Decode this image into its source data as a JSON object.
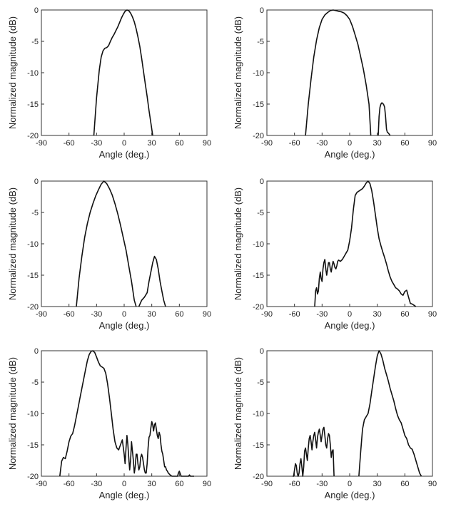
{
  "figure": {
    "background": "#ffffff",
    "line_color": "#111111"
  },
  "chart_data": [
    {
      "type": "line",
      "xlabel": "Angle (deg.)",
      "ylabel": "Normalized magnitude (dB)",
      "xlim": [
        -90,
        90
      ],
      "ylim": [
        -20,
        0
      ],
      "xticks": [
        "-90",
        "-60",
        "-30",
        "0",
        "30",
        "60",
        "90"
      ],
      "yticks": [
        "0",
        "-5",
        "-10",
        "-15",
        "-20"
      ],
      "grid": false,
      "series": [
        {
          "x": [
            -33,
            -30,
            -27,
            -25,
            -23,
            -21,
            -19,
            -17,
            -15,
            -13,
            -11,
            -9,
            -7,
            -5,
            -3,
            -1,
            1,
            3,
            5,
            7,
            9,
            11,
            13,
            15,
            17,
            19,
            21,
            23,
            25,
            27,
            29,
            31
          ],
          "y": [
            -20,
            -14,
            -9.5,
            -7.5,
            -6.5,
            -6.1,
            -6,
            -5.7,
            -5,
            -4.4,
            -3.9,
            -3.3,
            -2.7,
            -2,
            -1.3,
            -0.7,
            -0.2,
            0,
            -0.1,
            -0.5,
            -1.1,
            -1.9,
            -3,
            -4.3,
            -5.8,
            -7.7,
            -9.8,
            -11.8,
            -13.8,
            -16,
            -18,
            -20
          ]
        }
      ]
    },
    {
      "type": "line",
      "xlabel": "Angle (deg.)",
      "ylabel": "Normalized magnitude (dB)",
      "xlim": [
        -90,
        90
      ],
      "ylim": [
        -20,
        0
      ],
      "xticks": [
        "-90",
        "-60",
        "-30",
        "0",
        "30",
        "60",
        "90"
      ],
      "yticks": [
        "0",
        "-5",
        "-10",
        "-15",
        "-20"
      ],
      "grid": false,
      "series": [
        {
          "x": [
            -48,
            -45,
            -42,
            -39,
            -36,
            -33,
            -30,
            -27,
            -24,
            -21,
            -18,
            -15,
            -12,
            -9,
            -6,
            -3,
            0,
            3,
            6,
            9,
            12,
            15,
            18,
            21,
            23
          ],
          "y": [
            -20,
            -15,
            -11,
            -7.5,
            -4.8,
            -2.8,
            -1.5,
            -0.8,
            -0.4,
            -0.1,
            0,
            -0.1,
            -0.2,
            -0.3,
            -0.5,
            -0.9,
            -1.5,
            -2.6,
            -4,
            -5.5,
            -7.5,
            -9.5,
            -12,
            -15,
            -20
          ]
        },
        {
          "x": [
            31,
            32,
            33,
            34,
            35,
            36,
            37,
            38,
            39,
            40,
            41,
            42,
            43,
            44
          ],
          "y": [
            -20,
            -17,
            -15.5,
            -15,
            -14.8,
            -14.9,
            -15.1,
            -15.5,
            -17,
            -19,
            -19.5,
            -19.6,
            -19.8,
            -20
          ]
        }
      ]
    },
    {
      "type": "line",
      "xlabel": "Angle (deg.)",
      "ylabel": "Normalized magnitude (dB)",
      "xlim": [
        -90,
        90
      ],
      "ylim": [
        -20,
        0
      ],
      "xticks": [
        "-90",
        "-60",
        "-30",
        "0",
        "30",
        "60",
        "90"
      ],
      "yticks": [
        "0",
        "-5",
        "-10",
        "-15",
        "-20"
      ],
      "grid": false,
      "series": [
        {
          "x": [
            -52,
            -49,
            -46,
            -43,
            -40,
            -37,
            -34,
            -31,
            -28,
            -25,
            -22,
            -19,
            -16,
            -13,
            -10,
            -7,
            -4,
            -1,
            2,
            5,
            8,
            11,
            13
          ],
          "y": [
            -20,
            -15.5,
            -12,
            -9,
            -6.8,
            -5,
            -3.6,
            -2.4,
            -1.4,
            -0.5,
            0,
            -0.4,
            -1.2,
            -2.2,
            -3.6,
            -5.2,
            -7,
            -9,
            -11,
            -13.5,
            -16,
            -19,
            -20
          ]
        },
        {
          "x": [
            16,
            19,
            22,
            25,
            27,
            29,
            31,
            33,
            35,
            37,
            39,
            41,
            43,
            45
          ],
          "y": [
            -20,
            -19,
            -18.5,
            -17.8,
            -16,
            -14.5,
            -13,
            -12,
            -12.5,
            -14,
            -16,
            -17.5,
            -19,
            -20
          ]
        }
      ]
    },
    {
      "type": "line",
      "xlabel": "Angle (deg.)",
      "ylabel": "Normalized magnitude (dB)",
      "xlim": [
        -90,
        90
      ],
      "ylim": [
        -20,
        0
      ],
      "xticks": [
        "-90",
        "-60",
        "-30",
        "0",
        "30",
        "60",
        "90"
      ],
      "yticks": [
        "0",
        "-5",
        "-10",
        "-15",
        "-20"
      ],
      "grid": false,
      "series": [
        {
          "x": [
            -38,
            -37,
            -36,
            -35,
            -34,
            -33,
            -32,
            -31,
            -30,
            -29,
            -28,
            -27,
            -26,
            -25,
            -24,
            -23,
            -22,
            -21,
            -20,
            -19,
            -18,
            -17,
            -16,
            -15,
            -14,
            -13,
            -12,
            -11,
            -10,
            -8,
            -6,
            -4,
            -2,
            0,
            2,
            4,
            6,
            8,
            10,
            12,
            14,
            16,
            18,
            20,
            22,
            24,
            26,
            28,
            30,
            32,
            34,
            36,
            38,
            40,
            42,
            44,
            46,
            48,
            50,
            52,
            54,
            56,
            58,
            60,
            62,
            64,
            66,
            68,
            70,
            72
          ],
          "y": [
            -20,
            -17.5,
            -17,
            -18,
            -17.5,
            -15.5,
            -14.5,
            -15.5,
            -16,
            -14,
            -13,
            -12.5,
            -14,
            -15,
            -14,
            -13,
            -13,
            -14,
            -14.5,
            -13.5,
            -12.8,
            -13.2,
            -13.8,
            -14,
            -13.5,
            -12.8,
            -12.6,
            -12.7,
            -12.8,
            -12.5,
            -12,
            -11.5,
            -11,
            -9.5,
            -7.5,
            -4.5,
            -2.3,
            -1.8,
            -1.6,
            -1.4,
            -1.2,
            -0.8,
            -0.3,
            0,
            -0.4,
            -1.5,
            -3.3,
            -5.4,
            -7.5,
            -9.2,
            -10.3,
            -11.3,
            -12.2,
            -13.2,
            -14.3,
            -15.3,
            -16,
            -16.5,
            -17,
            -17.2,
            -17.5,
            -18,
            -18.2,
            -17.6,
            -17.4,
            -18.5,
            -19.5,
            -19.6,
            -19.8,
            -20
          ]
        }
      ]
    },
    {
      "type": "line",
      "xlabel": "Angle (deg.)",
      "ylabel": "Normalized magnitude (dB)",
      "xlim": [
        -90,
        90
      ],
      "ylim": [
        -20,
        0
      ],
      "xticks": [
        "-90",
        "-60",
        "-30",
        "0",
        "30",
        "60",
        "90"
      ],
      "yticks": [
        "0",
        "-5",
        "-10",
        "-15",
        "-20"
      ],
      "grid": false,
      "series": [
        {
          "x": [
            -70,
            -68,
            -66,
            -64,
            -62,
            -60,
            -58,
            -56,
            -54,
            -52,
            -50,
            -48,
            -46,
            -44,
            -42,
            -40,
            -38,
            -36,
            -34,
            -32,
            -30,
            -28,
            -26,
            -24,
            -22,
            -20,
            -18,
            -16,
            -14,
            -12,
            -10,
            -8,
            -6,
            -4,
            -2,
            0,
            1,
            2,
            3,
            4,
            5,
            6,
            7,
            8,
            9,
            10,
            11,
            12,
            13,
            14,
            15,
            16,
            17,
            18,
            19,
            20,
            21,
            22,
            23,
            24,
            25,
            26,
            27,
            28,
            29,
            30,
            31,
            32,
            33,
            34,
            35,
            36,
            37,
            38,
            39,
            40,
            41,
            42,
            43,
            44,
            45,
            46,
            47,
            48,
            50,
            52,
            54,
            56,
            58,
            59,
            60,
            61,
            62,
            64,
            66,
            68,
            70,
            71,
            72,
            74,
            76
          ],
          "y": [
            -20,
            -17.6,
            -17,
            -17.2,
            -16,
            -14.5,
            -13.6,
            -13.2,
            -12,
            -10.5,
            -9,
            -7.5,
            -6,
            -4.5,
            -3,
            -1.6,
            -0.6,
            -0.1,
            0,
            -0.3,
            -1,
            -1.8,
            -2.4,
            -2.6,
            -2.8,
            -3.6,
            -5.3,
            -7.5,
            -10,
            -12.5,
            -14.5,
            -15.5,
            -15.8,
            -15,
            -14.2,
            -16.5,
            -18,
            -15.5,
            -13.5,
            -15,
            -17,
            -19,
            -17.5,
            -14.5,
            -16,
            -17.5,
            -19.5,
            -18.5,
            -16.5,
            -16.5,
            -18,
            -19,
            -18.5,
            -17,
            -16.5,
            -17,
            -18,
            -19,
            -19.5,
            -19.5,
            -18,
            -15.5,
            -13.8,
            -13.5,
            -12.3,
            -11.3,
            -11.8,
            -12.8,
            -11.8,
            -11.5,
            -12.5,
            -13.5,
            -14,
            -13,
            -13.5,
            -15,
            -16,
            -16.5,
            -17.5,
            -18.5,
            -18.5,
            -19,
            -19.2,
            -19.5,
            -19.8,
            -20,
            -20,
            -20,
            -20,
            -19.5,
            -19.2,
            -19.6,
            -20,
            -20,
            -20,
            -20,
            -20,
            -19.8,
            -20,
            -20,
            -20
          ]
        }
      ]
    },
    {
      "type": "line",
      "xlabel": "Angle (deg.)",
      "ylabel": "Normalized magnitude (dB)",
      "xlim": [
        -90,
        90
      ],
      "ylim": [
        -20,
        0
      ],
      "xticks": [
        "-90",
        "-60",
        "-30",
        "0",
        "30",
        "60",
        "90"
      ],
      "yticks": [
        "0",
        "-5",
        "-10",
        "-15",
        "-20"
      ],
      "grid": false,
      "series": [
        {
          "x": [
            -62,
            -61,
            -60,
            -59,
            -58,
            -57,
            -56,
            -55,
            -54,
            -53,
            -52,
            -51,
            -50,
            -49,
            -48,
            -47,
            -46,
            -45,
            -44,
            -43,
            -42,
            -41,
            -40,
            -39,
            -38,
            -37,
            -36,
            -35,
            -34,
            -33,
            -32,
            -31,
            -30,
            -29,
            -28,
            -27,
            -26,
            -25,
            -24,
            -23,
            -22,
            -21,
            -20,
            -19,
            -18,
            -17
          ],
          "y": [
            -20,
            -20,
            -19,
            -18,
            -18.3,
            -19.5,
            -20,
            -19.5,
            -18,
            -17.2,
            -18.5,
            -20,
            -18.5,
            -16,
            -15.5,
            -16.5,
            -17.5,
            -15.5,
            -14,
            -13.5,
            -14.5,
            -15.8,
            -14.5,
            -13.5,
            -13,
            -14.2,
            -15.5,
            -13.8,
            -13,
            -12.5,
            -13.5,
            -14.5,
            -13.5,
            -12.5,
            -12.2,
            -13.5,
            -15,
            -15.5,
            -14,
            -13.2,
            -13.5,
            -15,
            -17,
            -16,
            -15.8,
            -20
          ]
        },
        {
          "x": [
            10,
            12,
            14,
            16,
            18,
            20,
            22,
            24,
            26,
            28,
            30,
            32,
            34,
            36,
            38,
            40,
            42,
            44,
            46,
            48,
            50,
            52,
            54,
            56,
            58,
            60,
            62,
            64,
            66,
            68,
            70,
            72,
            74,
            76,
            78
          ],
          "y": [
            -20,
            -16,
            -12.5,
            -11,
            -10.5,
            -10,
            -8.5,
            -6.5,
            -4.5,
            -2.5,
            -0.8,
            0,
            -0.5,
            -1.5,
            -2.8,
            -3.8,
            -4.8,
            -6,
            -7,
            -8,
            -9.2,
            -10.3,
            -11,
            -11.5,
            -12.5,
            -13.5,
            -14,
            -15,
            -15.5,
            -15.7,
            -16.5,
            -17.5,
            -18.5,
            -19.5,
            -20
          ]
        }
      ]
    }
  ]
}
